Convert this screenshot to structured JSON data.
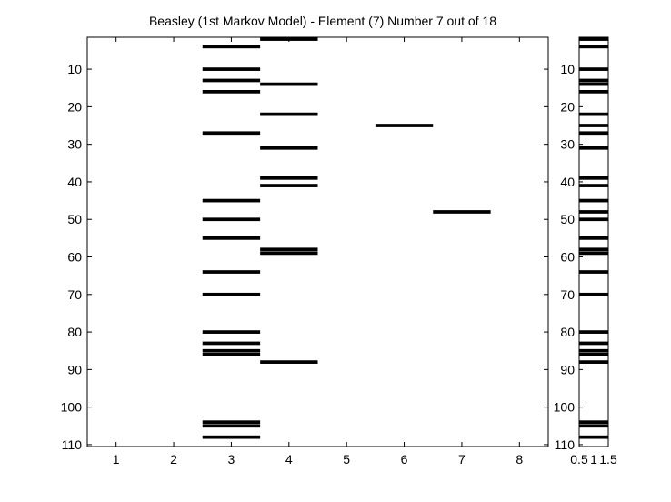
{
  "chart_data": [
    {
      "type": "heatmap",
      "title": "Beasley (1st Markov Model) - Element (7) Number 7 out of 18",
      "xlim": [
        0.5,
        8.5
      ],
      "ylim": [
        1.5,
        110.5
      ],
      "y_direction": "reversed",
      "x_ticks": [
        "1",
        "2",
        "3",
        "4",
        "5",
        "6",
        "7",
        "8"
      ],
      "y_ticks": [
        "10",
        "20",
        "30",
        "40",
        "50",
        "60",
        "70",
        "80",
        "90",
        "100",
        "110"
      ],
      "colors": {
        "mark": "#000000",
        "background": "#ffffff",
        "axis": "#000000"
      },
      "marks": [
        {
          "x": 3,
          "rows": [
            4,
            10,
            13,
            16,
            27,
            45,
            50,
            55,
            64,
            70,
            80,
            83,
            85,
            86,
            104,
            105,
            108
          ]
        },
        {
          "x": 4,
          "rows": [
            2,
            14,
            22,
            31,
            39,
            41,
            58,
            59,
            88
          ]
        },
        {
          "x": 6,
          "rows": [
            25
          ]
        },
        {
          "x": 7,
          "rows": [
            48
          ]
        }
      ]
    },
    {
      "type": "heatmap",
      "title": "",
      "xlim": [
        0.5,
        1.5
      ],
      "ylim": [
        1.5,
        110.5
      ],
      "y_direction": "reversed",
      "x_ticks": [
        "0.5",
        "1",
        "1.5"
      ],
      "y_ticks": [
        "10",
        "20",
        "30",
        "40",
        "50",
        "60",
        "70",
        "80",
        "90",
        "100",
        "110"
      ],
      "rows": [
        2,
        4,
        10,
        13,
        14,
        16,
        22,
        25,
        27,
        31,
        39,
        41,
        45,
        48,
        50,
        55,
        58,
        59,
        64,
        70,
        80,
        83,
        85,
        86,
        88,
        104,
        105,
        108
      ]
    }
  ]
}
